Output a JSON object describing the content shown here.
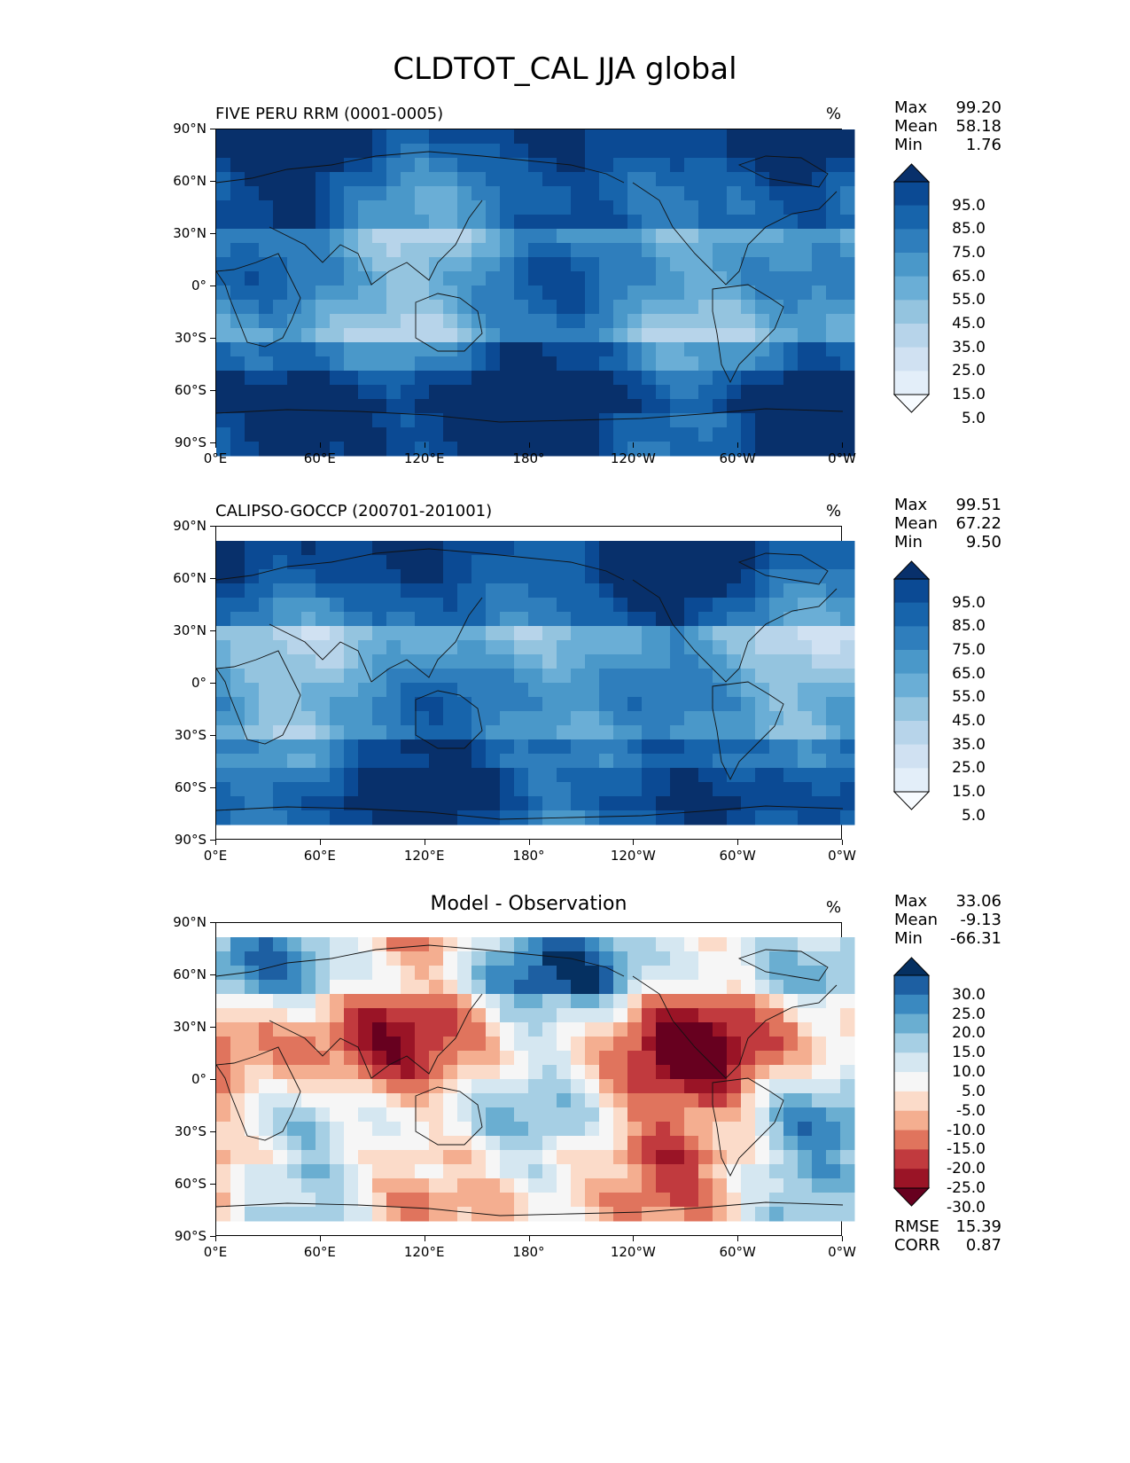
{
  "figure_title": "CLDTOT_CAL JJA global",
  "chart_data": [
    {
      "type": "heatmap",
      "title": "FIVE PERU RRM (0001-0005)",
      "units": "%",
      "stats": {
        "Max": "99.20",
        "Mean": "58.18",
        "Min": "1.76"
      },
      "colormap": "Blues",
      "colorbar_levels": [
        "95.0",
        "85.0",
        "75.0",
        "65.0",
        "55.0",
        "45.0",
        "35.0",
        "25.0",
        "15.0",
        "5.0"
      ],
      "colorbar_colors": [
        "#08306b",
        "#0b4a94",
        "#1764ab",
        "#2f7ebc",
        "#4a98c9",
        "#6aaed6",
        "#94c4df",
        "#b7d4ea",
        "#d0e1f2",
        "#e3eef9",
        "#f7fbff"
      ],
      "x_ticks": [
        "0°E",
        "60°E",
        "120°E",
        "180°",
        "120°W",
        "60°W",
        "0°W"
      ],
      "y_ticks": [
        "90°N",
        "60°N",
        "30°N",
        "0°",
        "30°S",
        "60°S",
        "90°S"
      ]
    },
    {
      "type": "heatmap",
      "title": "CALIPSO-GOCCP (200701-201001)",
      "units": "%",
      "stats": {
        "Max": "99.51",
        "Mean": "67.22",
        "Min": "9.50"
      },
      "colormap": "Blues",
      "colorbar_levels": [
        "95.0",
        "85.0",
        "75.0",
        "65.0",
        "55.0",
        "45.0",
        "35.0",
        "25.0",
        "15.0",
        "5.0"
      ],
      "colorbar_colors": [
        "#08306b",
        "#0b4a94",
        "#1764ab",
        "#2f7ebc",
        "#4a98c9",
        "#6aaed6",
        "#94c4df",
        "#b7d4ea",
        "#d0e1f2",
        "#e3eef9",
        "#f7fbff"
      ],
      "x_ticks": [
        "0°E",
        "60°E",
        "120°E",
        "180°",
        "120°W",
        "60°W",
        "0°W"
      ],
      "y_ticks": [
        "90°N",
        "60°N",
        "30°N",
        "0°",
        "30°S",
        "60°S",
        "90°S"
      ]
    },
    {
      "type": "heatmap",
      "title": "Model - Observation",
      "units": "%",
      "stats": {
        "Max": "33.06",
        "Mean": "-9.13",
        "Min": "-66.31"
      },
      "extra_stats": {
        "RMSE": "15.39",
        "CORR": "0.87"
      },
      "colormap": "RdBu",
      "colorbar_levels": [
        "30.0",
        "25.0",
        "20.0",
        "15.0",
        "10.0",
        "5.0",
        "-5.0",
        "-10.0",
        "-15.0",
        "-20.0",
        "-25.0",
        "-30.0"
      ],
      "colorbar_colors": [
        "#053061",
        "#1d5fa2",
        "#3a89c0",
        "#6aaed1",
        "#a6cfe4",
        "#d5e7f1",
        "#f6f6f6",
        "#fbdbc9",
        "#f4ae90",
        "#e0745d",
        "#c13a3e",
        "#9a1426",
        "#67001f"
      ],
      "x_ticks": [
        "0°E",
        "60°E",
        "120°E",
        "180°",
        "120°W",
        "60°W",
        "0°W"
      ],
      "y_ticks": [
        "90°N",
        "60°N",
        "30°N",
        "0°",
        "30°S",
        "60°S",
        "90°S"
      ]
    }
  ]
}
